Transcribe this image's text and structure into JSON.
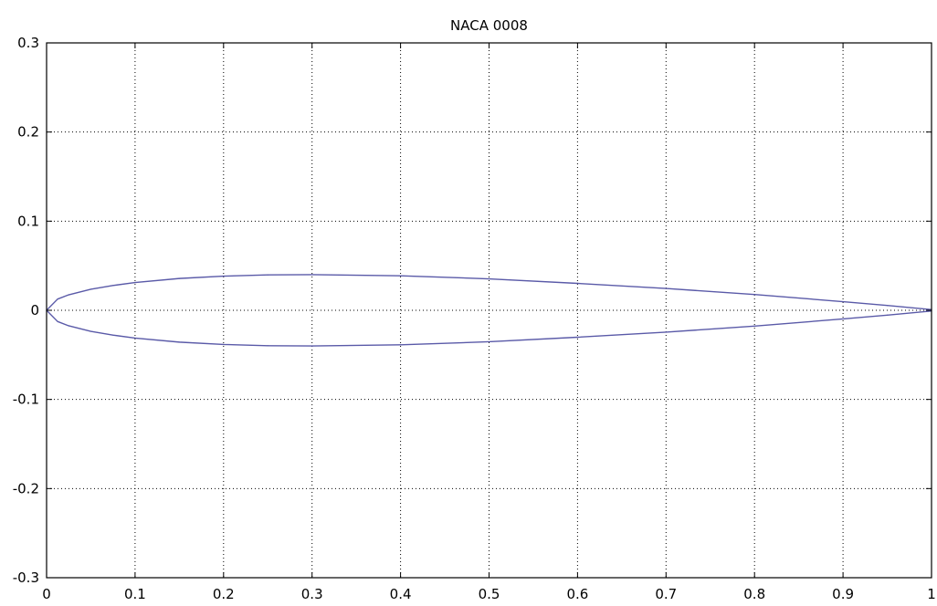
{
  "chart_data": {
    "type": "line",
    "title": "NACA 0008",
    "xlabel": "",
    "ylabel": "",
    "xlim": [
      0,
      1
    ],
    "ylim": [
      -0.3,
      0.3
    ],
    "grid": true,
    "xticks": [
      0,
      0.1,
      0.2,
      0.3,
      0.4,
      0.5,
      0.6,
      0.7,
      0.8,
      0.9,
      1
    ],
    "xtick_labels": [
      "0",
      "0.1",
      "0.2",
      "0.3",
      "0.4",
      "0.5",
      "0.6",
      "0.7",
      "0.8",
      "0.9",
      "1"
    ],
    "yticks": [
      -0.3,
      -0.2,
      -0.1,
      0,
      0.1,
      0.2,
      0.3
    ],
    "ytick_labels": [
      "-0.3",
      "-0.2",
      "-0.1",
      "0",
      "0.1",
      "0.2",
      "0.3"
    ],
    "series": [
      {
        "color": "#5a5aa8",
        "x": [
          1.0,
          0.95,
          0.9,
          0.8,
          0.7,
          0.6,
          0.5,
          0.4,
          0.3,
          0.25,
          0.2,
          0.15,
          0.1,
          0.075,
          0.05,
          0.025,
          0.0125,
          0.0,
          0.0125,
          0.025,
          0.05,
          0.075,
          0.1,
          0.15,
          0.2,
          0.25,
          0.3,
          0.4,
          0.5,
          0.6,
          0.7,
          0.8,
          0.9,
          0.95,
          1.0
        ],
        "y": [
          0.0008,
          0.0054,
          0.0097,
          0.0177,
          0.0245,
          0.0302,
          0.0353,
          0.0387,
          0.04,
          0.0397,
          0.0383,
          0.0357,
          0.0312,
          0.0278,
          0.0236,
          0.0174,
          0.0126,
          0.0,
          -0.0126,
          -0.0174,
          -0.0236,
          -0.0278,
          -0.0312,
          -0.0357,
          -0.0383,
          -0.0397,
          -0.04,
          -0.0387,
          -0.0353,
          -0.0302,
          -0.0245,
          -0.0177,
          -0.0097,
          -0.0054,
          -0.0008
        ]
      }
    ]
  }
}
